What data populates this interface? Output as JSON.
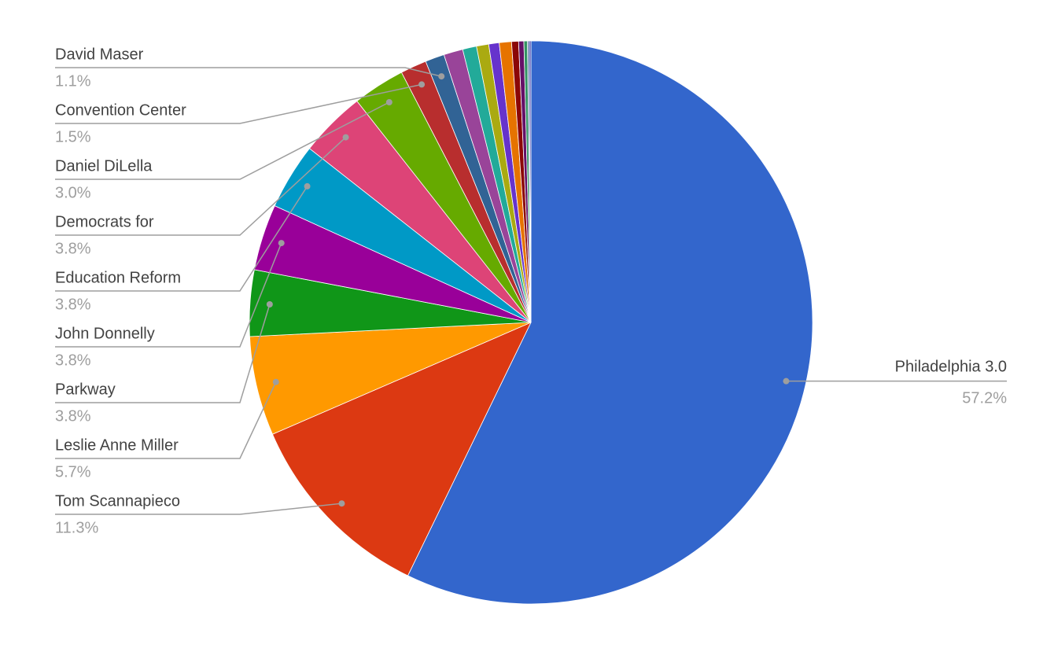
{
  "chart_data": {
    "type": "pie",
    "categories": [
      "Philadelphia 3.0",
      "Tom Scannapieco",
      "Leslie Anne Miller",
      "Parkway",
      "John Donnelly",
      "Education Reform",
      "Democrats for",
      "Daniel DiLella",
      "Convention Center",
      "David Maser",
      null,
      null,
      null,
      null,
      null,
      null,
      null,
      null,
      null,
      null
    ],
    "values": [
      57.2,
      11.3,
      5.7,
      3.8,
      3.8,
      3.8,
      3.8,
      3.0,
      1.5,
      1.1,
      1.1,
      0.8,
      0.7,
      0.6,
      0.7,
      0.4,
      0.3,
      0.2,
      0.1,
      0.1
    ],
    "value_labels": [
      "57.2%",
      "11.3%",
      "5.7%",
      "3.8%",
      "3.8%",
      "3.8%",
      "3.8%",
      "3.0%",
      "1.5%",
      "1.1%",
      null,
      null,
      null,
      null,
      null,
      null,
      null,
      null,
      null,
      null
    ],
    "colors": [
      "#3366cc",
      "#dc3912",
      "#ff9900",
      "#109618",
      "#990099",
      "#0099c6",
      "#dd4477",
      "#66aa00",
      "#b82e2e",
      "#316395",
      "#994499",
      "#22aa99",
      "#aaaa11",
      "#6633cc",
      "#e67300",
      "#8b0707",
      "#651067",
      "#329262",
      "#5574a6",
      "#3b3eac"
    ]
  }
}
